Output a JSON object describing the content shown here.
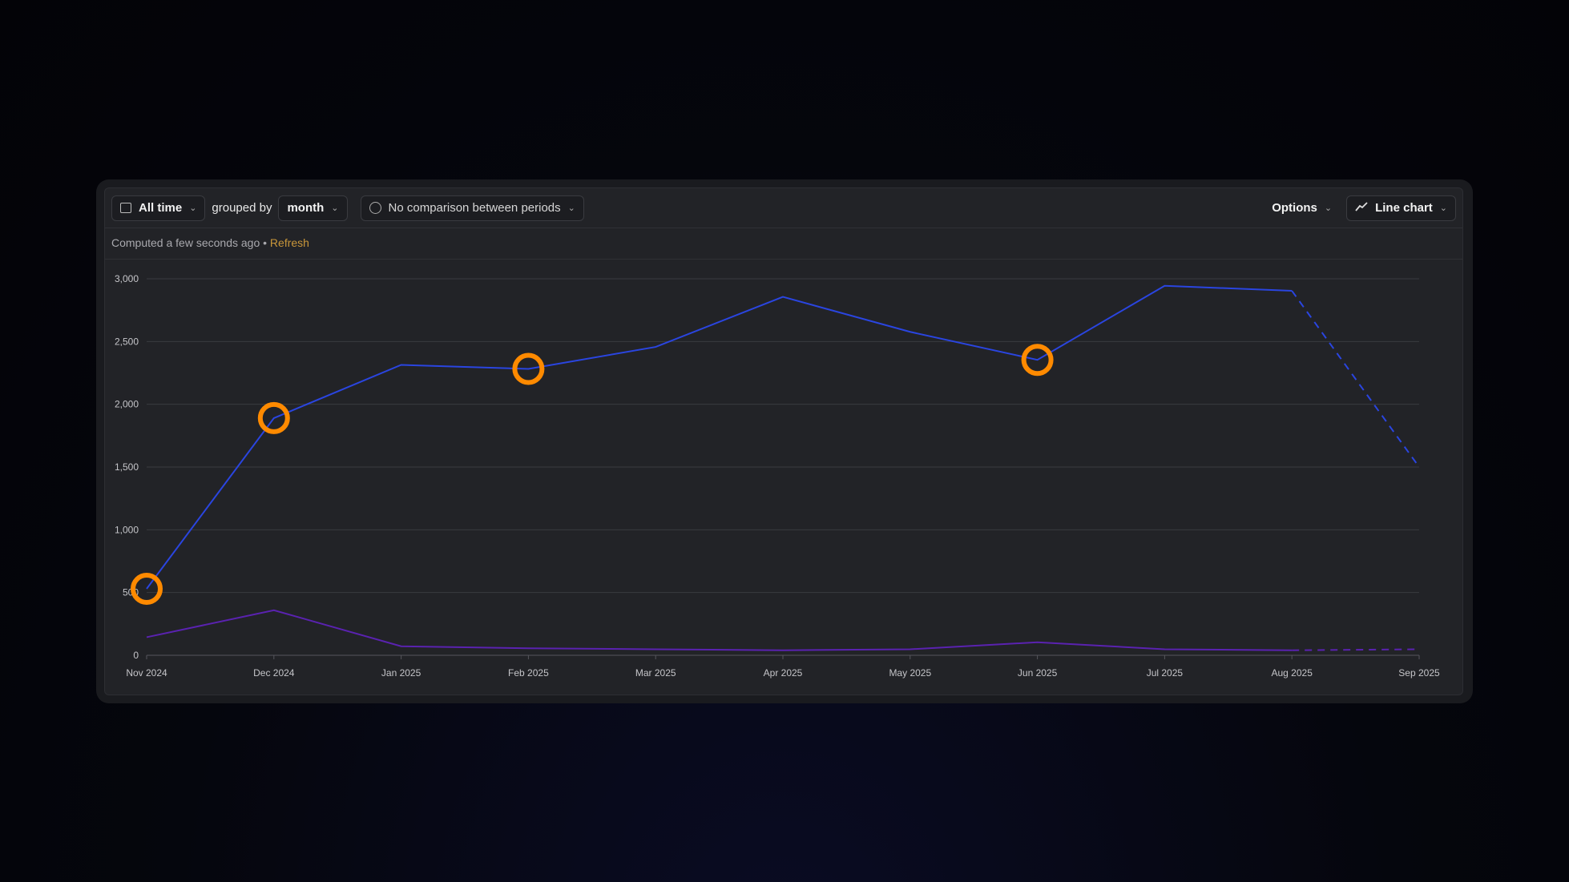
{
  "toolbar": {
    "date_range": "All time",
    "grouped_by_label": "grouped by",
    "interval": "month",
    "comparison": "No comparison between periods",
    "options": "Options",
    "chart_type": "Line chart"
  },
  "status": {
    "computed": "Computed a few seconds ago",
    "separator": "•",
    "refresh": "Refresh"
  },
  "colors": {
    "series1": "#2a45e0",
    "series2": "#5a22b0",
    "highlight": "#ff8a00",
    "refresh": "#c8963a"
  },
  "chart_data": {
    "type": "line",
    "categories": [
      "Nov 2024",
      "Dec 2024",
      "Jan 2025",
      "Feb 2025",
      "Mar 2025",
      "Apr 2025",
      "May 2025",
      "Jun 2025",
      "Jul 2025",
      "Aug 2025",
      "Sep 2025"
    ],
    "ylim": [
      0,
      3000
    ],
    "yticks": [
      "0",
      "500",
      "1,000",
      "1,500",
      "2,000",
      "2,500",
      "3,000"
    ],
    "grid": true,
    "series": [
      {
        "values": [
          530,
          1890,
          2314,
          2282,
          2457,
          2856,
          2577,
          2354,
          2944,
          2904,
          1500
        ],
        "color": "#2a45e0",
        "dashed_from": "Aug 2025"
      },
      {
        "values": [
          144,
          359,
          72,
          56,
          48,
          40,
          48,
          104,
          48,
          40,
          48
        ],
        "color": "#5a22b0",
        "dashed_from": "Aug 2025"
      }
    ],
    "highlighted_points": {
      "series": 0,
      "categories": [
        "Nov 2024",
        "Dec 2024",
        "Feb 2025",
        "Jun 2025"
      ]
    }
  }
}
